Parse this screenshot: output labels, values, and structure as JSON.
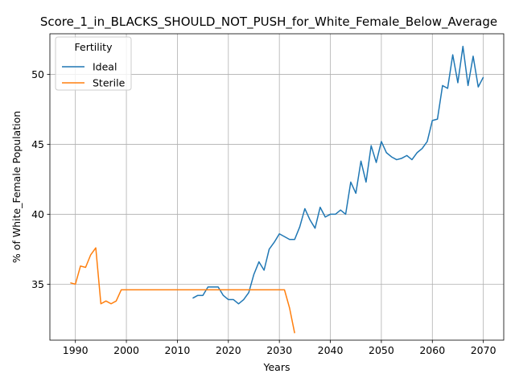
{
  "chart_data": {
    "type": "line",
    "title": "Score_1_in_BLACKS_SHOULD_NOT_PUSH_for_White_Female_Below_Average",
    "xlabel": "Years",
    "ylabel": "% of White_Female Population",
    "xlim": [
      1985,
      2074
    ],
    "ylim": [
      31.0,
      52.9
    ],
    "xticks": [
      1990,
      2000,
      2010,
      2020,
      2030,
      2040,
      2050,
      2060,
      2070
    ],
    "yticks": [
      35,
      40,
      45,
      50
    ],
    "grid": true,
    "legend": {
      "title": "Fertility",
      "location": "upper-left"
    },
    "series": [
      {
        "name": "Ideal",
        "color": "#1f77b4",
        "x": [
          2013,
          2014,
          2015,
          2016,
          2017,
          2018,
          2019,
          2020,
          2021,
          2022,
          2023,
          2024,
          2025,
          2026,
          2027,
          2028,
          2029,
          2030,
          2031,
          2032,
          2033,
          2034,
          2035,
          2036,
          2037,
          2038,
          2039,
          2040,
          2041,
          2042,
          2043,
          2044,
          2045,
          2046,
          2047,
          2048,
          2049,
          2050,
          2051,
          2052,
          2053,
          2054,
          2055,
          2056,
          2057,
          2058,
          2059,
          2060,
          2061,
          2062,
          2063,
          2064,
          2065,
          2066,
          2067,
          2068,
          2069,
          2070
        ],
        "y": [
          34.0,
          34.2,
          34.2,
          34.8,
          34.8,
          34.8,
          34.2,
          33.9,
          33.9,
          33.6,
          33.9,
          34.4,
          35.7,
          36.6,
          36.0,
          37.5,
          38.0,
          38.6,
          38.4,
          38.2,
          38.2,
          39.1,
          40.4,
          39.6,
          39.0,
          40.5,
          39.8,
          40.0,
          40.0,
          40.3,
          40.0,
          42.3,
          41.5,
          43.8,
          42.3,
          44.9,
          43.7,
          45.2,
          44.4,
          44.1,
          43.9,
          44.0,
          44.2,
          43.9,
          44.4,
          44.7,
          45.2,
          46.7,
          46.8,
          49.2,
          49.0,
          51.4,
          49.4,
          52.0,
          49.2,
          51.3,
          49.1,
          49.8
        ]
      },
      {
        "name": "Sterile",
        "color": "#ff7f0e",
        "x": [
          1989,
          1990,
          1991,
          1992,
          1993,
          1994,
          1995,
          1996,
          1997,
          1998,
          1999,
          2000,
          2001,
          2002,
          2003,
          2004,
          2005,
          2006,
          2007,
          2008,
          2009,
          2010,
          2011,
          2012,
          2013,
          2014,
          2015,
          2016,
          2017,
          2018,
          2019,
          2020,
          2021,
          2022,
          2023,
          2024,
          2025,
          2026,
          2027,
          2028,
          2029,
          2030,
          2031,
          2032,
          2033
        ],
        "y": [
          35.1,
          35.0,
          36.3,
          36.2,
          37.1,
          37.6,
          33.6,
          33.8,
          33.6,
          33.8,
          34.6,
          34.6,
          34.6,
          34.6,
          34.6,
          34.6,
          34.6,
          34.6,
          34.6,
          34.6,
          34.6,
          34.6,
          34.6,
          34.6,
          34.6,
          34.6,
          34.6,
          34.6,
          34.6,
          34.6,
          34.6,
          34.6,
          34.6,
          34.6,
          34.6,
          34.6,
          34.6,
          34.6,
          34.6,
          34.6,
          34.6,
          34.6,
          34.6,
          33.3,
          31.5
        ]
      }
    ]
  }
}
